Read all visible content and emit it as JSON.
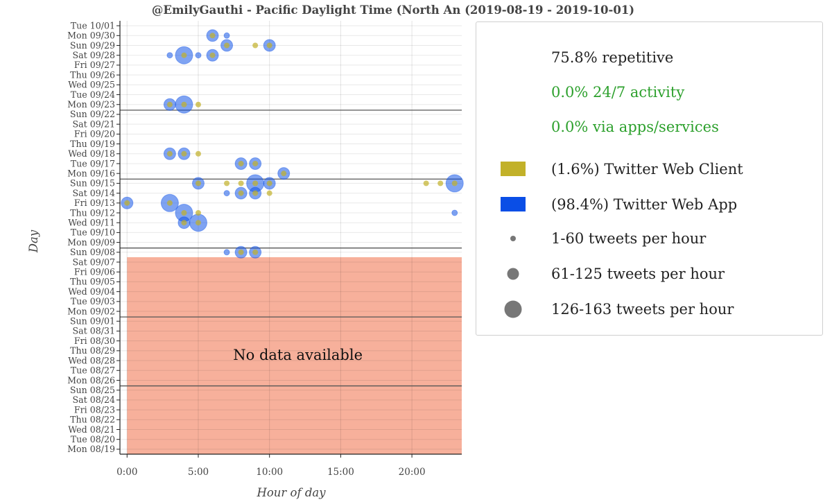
{
  "chart_data": {
    "type": "scatter",
    "title": "@EmilyGauthi - Pacific Daylight Time (North An  (2019-08-19 - 2019-10-01)",
    "xlabel": "Hour of day",
    "ylabel": "Day",
    "xlim": [
      -0.5,
      23.5
    ],
    "x_ticks": [
      {
        "value": 0,
        "label": "0:00"
      },
      {
        "value": 5,
        "label": "5:00"
      },
      {
        "value": 10,
        "label": "10:00"
      },
      {
        "value": 15,
        "label": "15:00"
      },
      {
        "value": 20,
        "label": "20:00"
      }
    ],
    "days": [
      "Mon 08/19",
      "Tue 08/20",
      "Wed 08/21",
      "Thu 08/22",
      "Fri 08/23",
      "Sat 08/24",
      "Sun 08/25",
      "Mon 08/26",
      "Tue 08/27",
      "Wed 08/28",
      "Thu 08/29",
      "Fri 08/30",
      "Sat 08/31",
      "Sun 09/01",
      "Mon 09/02",
      "Tue 09/03",
      "Wed 09/04",
      "Thu 09/05",
      "Fri 09/06",
      "Sat 09/07",
      "Sun 09/08",
      "Mon 09/09",
      "Tue 09/10",
      "Wed 09/11",
      "Thu 09/12",
      "Fri 09/13",
      "Sat 09/14",
      "Sun 09/15",
      "Mon 09/16",
      "Tue 09/17",
      "Wed 09/18",
      "Thu 09/19",
      "Fri 09/20",
      "Sat 09/21",
      "Sun 09/22",
      "Mon 09/23",
      "Tue 09/24",
      "Wed 09/25",
      "Thu 09/26",
      "Fri 09/27",
      "Sat 09/28",
      "Sun 09/29",
      "Mon 09/30",
      "Tue 10/01"
    ],
    "week_separators": [
      "Sun 08/25",
      "Sun 09/01",
      "Sun 09/08",
      "Sun 09/15",
      "Sun 09/22"
    ],
    "no_data_region": {
      "from_day": "Mon 08/19",
      "to_day": "Sat 09/07",
      "from_hour": 0,
      "to_hour": 23.5,
      "label": "No data available",
      "color": "#f7b09b"
    },
    "grid": true,
    "legend_position": "right",
    "colors": {
      "twitter_web_client": "#c2b129",
      "twitter_web_app": "#0a4ee6",
      "size_marker": "#777777",
      "green_text": "#2ca02c",
      "no_data": "#f7b09b"
    },
    "series": [
      {
        "name": "Twitter Web App",
        "color": "#0a4ee6",
        "points": [
          {
            "day": "Mon 09/30",
            "hour": 6,
            "count": 70
          },
          {
            "day": "Mon 09/30",
            "hour": 7,
            "count": 20
          },
          {
            "day": "Sun 09/29",
            "hour": 7,
            "count": 70
          },
          {
            "day": "Sun 09/29",
            "hour": 10,
            "count": 80
          },
          {
            "day": "Sat 09/28",
            "hour": 3,
            "count": 15
          },
          {
            "day": "Sat 09/28",
            "hour": 4,
            "count": 150
          },
          {
            "day": "Sat 09/28",
            "hour": 5,
            "count": 15
          },
          {
            "day": "Sat 09/28",
            "hour": 6,
            "count": 70
          },
          {
            "day": "Mon 09/23",
            "hour": 3,
            "count": 70
          },
          {
            "day": "Mon 09/23",
            "hour": 4,
            "count": 150
          },
          {
            "day": "Wed 09/18",
            "hour": 3,
            "count": 80
          },
          {
            "day": "Wed 09/18",
            "hour": 4,
            "count": 80
          },
          {
            "day": "Tue 09/17",
            "hour": 8,
            "count": 80
          },
          {
            "day": "Tue 09/17",
            "hour": 9,
            "count": 80
          },
          {
            "day": "Mon 09/16",
            "hour": 11,
            "count": 80
          },
          {
            "day": "Sun 09/15",
            "hour": 5,
            "count": 80
          },
          {
            "day": "Sun 09/15",
            "hour": 9,
            "count": 150
          },
          {
            "day": "Sun 09/15",
            "hour": 10,
            "count": 80
          },
          {
            "day": "Sun 09/15",
            "hour": 23,
            "count": 160
          },
          {
            "day": "Sat 09/14",
            "hour": 7,
            "count": 15
          },
          {
            "day": "Sat 09/14",
            "hour": 8,
            "count": 80
          },
          {
            "day": "Sat 09/14",
            "hour": 9,
            "count": 80
          },
          {
            "day": "Fri 09/13",
            "hour": 0,
            "count": 80
          },
          {
            "day": "Fri 09/13",
            "hour": 3,
            "count": 150
          },
          {
            "day": "Thu 09/12",
            "hour": 4,
            "count": 150
          },
          {
            "day": "Thu 09/12",
            "hour": 23,
            "count": 15
          },
          {
            "day": "Wed 09/11",
            "hour": 4,
            "count": 80
          },
          {
            "day": "Wed 09/11",
            "hour": 5,
            "count": 150
          },
          {
            "day": "Sun 09/08",
            "hour": 7,
            "count": 15
          },
          {
            "day": "Sun 09/08",
            "hour": 8,
            "count": 80
          },
          {
            "day": "Sun 09/08",
            "hour": 9,
            "count": 80
          }
        ]
      },
      {
        "name": "Twitter Web Client",
        "color": "#c2b129",
        "points": [
          {
            "day": "Mon 09/30",
            "hour": 6,
            "count": 8
          },
          {
            "day": "Sun 09/29",
            "hour": 7,
            "count": 8
          },
          {
            "day": "Sun 09/29",
            "hour": 9,
            "count": 12
          },
          {
            "day": "Sun 09/29",
            "hour": 10,
            "count": 8
          },
          {
            "day": "Sat 09/28",
            "hour": 4,
            "count": 8
          },
          {
            "day": "Sat 09/28",
            "hour": 6,
            "count": 8
          },
          {
            "day": "Mon 09/23",
            "hour": 3,
            "count": 8
          },
          {
            "day": "Mon 09/23",
            "hour": 4,
            "count": 8
          },
          {
            "day": "Mon 09/23",
            "hour": 5,
            "count": 12
          },
          {
            "day": "Wed 09/18",
            "hour": 3,
            "count": 8
          },
          {
            "day": "Wed 09/18",
            "hour": 4,
            "count": 8
          },
          {
            "day": "Wed 09/18",
            "hour": 5,
            "count": 12
          },
          {
            "day": "Tue 09/17",
            "hour": 8,
            "count": 8
          },
          {
            "day": "Tue 09/17",
            "hour": 9,
            "count": 8
          },
          {
            "day": "Mon 09/16",
            "hour": 11,
            "count": 8
          },
          {
            "day": "Sun 09/15",
            "hour": 5,
            "count": 8
          },
          {
            "day": "Sun 09/15",
            "hour": 7,
            "count": 12
          },
          {
            "day": "Sun 09/15",
            "hour": 8,
            "count": 12
          },
          {
            "day": "Sun 09/15",
            "hour": 9,
            "count": 8
          },
          {
            "day": "Sun 09/15",
            "hour": 10,
            "count": 8
          },
          {
            "day": "Sun 09/15",
            "hour": 21,
            "count": 12
          },
          {
            "day": "Sun 09/15",
            "hour": 22,
            "count": 12
          },
          {
            "day": "Sun 09/15",
            "hour": 23,
            "count": 8
          },
          {
            "day": "Sat 09/14",
            "hour": 8,
            "count": 8
          },
          {
            "day": "Sat 09/14",
            "hour": 9,
            "count": 8
          },
          {
            "day": "Sat 09/14",
            "hour": 10,
            "count": 12
          },
          {
            "day": "Fri 09/13",
            "hour": 0,
            "count": 8
          },
          {
            "day": "Fri 09/13",
            "hour": 3,
            "count": 8
          },
          {
            "day": "Thu 09/12",
            "hour": 4,
            "count": 8
          },
          {
            "day": "Thu 09/12",
            "hour": 5,
            "count": 12
          },
          {
            "day": "Wed 09/11",
            "hour": 4,
            "count": 8
          },
          {
            "day": "Wed 09/11",
            "hour": 5,
            "count": 8
          },
          {
            "day": "Sun 09/08",
            "hour": 8,
            "count": 8
          },
          {
            "day": "Sun 09/08",
            "hour": 9,
            "count": 8
          }
        ]
      }
    ]
  },
  "legend": {
    "stats": [
      {
        "text": "75.8% repetitive",
        "color": "#222222"
      },
      {
        "text": "0.0% 24/7 activity",
        "color": "#2ca02c"
      },
      {
        "text": "0.0% via apps/services",
        "color": "#2ca02c"
      }
    ],
    "clients": [
      {
        "label": "(1.6%) Twitter Web Client",
        "color": "#c2b129"
      },
      {
        "label": "(98.4%) Twitter Web App",
        "color": "#0a4ee6"
      }
    ],
    "sizes": [
      {
        "label": "1-60 tweets per hour",
        "radius": 4
      },
      {
        "label": "61-125 tweets per hour",
        "radius": 8.5
      },
      {
        "label": "126-163 tweets per hour",
        "radius": 12.5
      }
    ]
  }
}
